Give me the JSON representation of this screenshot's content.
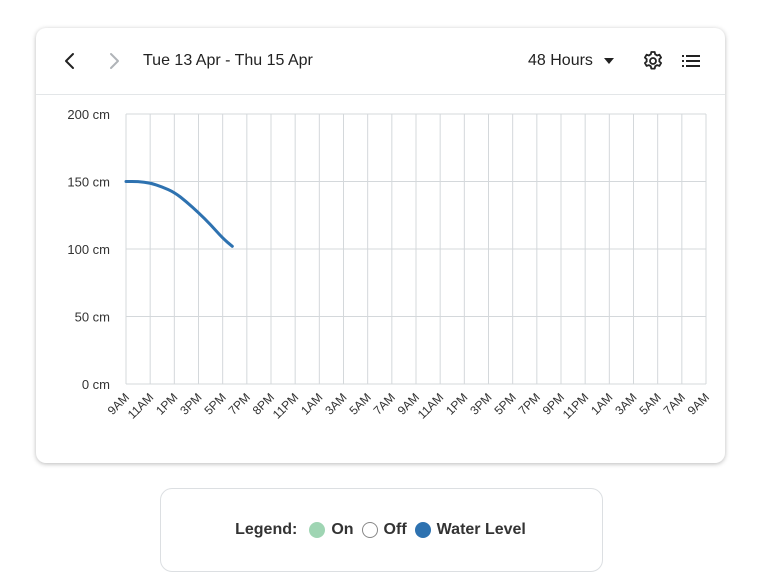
{
  "header": {
    "date_range": "Tue 13 Apr - Thu 15 Apr",
    "range_label": "48 Hours"
  },
  "legend": {
    "title": "Legend:",
    "items": [
      {
        "label": "On",
        "color": "#9fd5b3",
        "style": "filled"
      },
      {
        "label": "Off",
        "color": "#ffffff",
        "border": "#888888",
        "style": "outline"
      },
      {
        "label": "Water Level",
        "color": "#2e72b0",
        "style": "filled"
      }
    ]
  },
  "chart_data": {
    "type": "line",
    "title": "",
    "xlabel": "",
    "ylabel": "",
    "ylim": [
      0,
      200
    ],
    "y_ticks": [
      0,
      50,
      100,
      150,
      200
    ],
    "y_unit": "cm",
    "y_tick_labels": [
      "0 cm",
      "50 cm",
      "100 cm",
      "150 cm",
      "200 cm"
    ],
    "x_tick_labels": [
      "9AM",
      "11AM",
      "1PM",
      "3PM",
      "5PM",
      "7PM",
      "8PM",
      "11PM",
      "1AM",
      "3AM",
      "5AM",
      "7AM",
      "9AM",
      "11AM",
      "1PM",
      "3PM",
      "5PM",
      "7PM",
      "9PM",
      "11PM",
      "1AM",
      "3AM",
      "5AM",
      "7AM",
      "9AM"
    ],
    "grid": true,
    "series": [
      {
        "name": "Water Level",
        "color": "#2e72b0",
        "x": [
          0,
          0.5,
          1,
          1.5,
          2,
          2.5,
          3,
          3.5,
          4,
          4.4
        ],
        "y": [
          150,
          150,
          149,
          146,
          142,
          135,
          127,
          118,
          108,
          102
        ]
      }
    ]
  }
}
